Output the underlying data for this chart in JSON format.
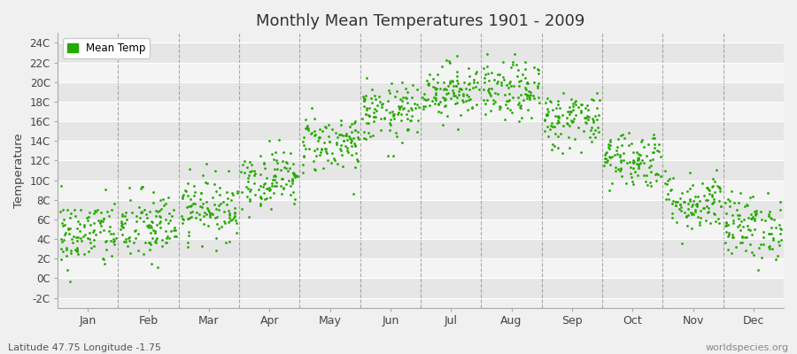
{
  "title": "Monthly Mean Temperatures 1901 - 2009",
  "ylabel": "Temperature",
  "subtitle": "Latitude 47.75 Longitude -1.75",
  "watermark": "worldspecies.org",
  "legend_label": "Mean Temp",
  "dot_color": "#22aa00",
  "bg_color": "#f0f0f0",
  "stripe_light": "#f4f4f4",
  "stripe_dark": "#e6e6e6",
  "grid_color": "#888888",
  "ytick_labels": [
    "-2C",
    "0C",
    "2C",
    "4C",
    "6C",
    "8C",
    "10C",
    "12C",
    "14C",
    "16C",
    "18C",
    "20C",
    "22C",
    "24C"
  ],
  "ytick_values": [
    -2,
    0,
    2,
    4,
    6,
    8,
    10,
    12,
    14,
    16,
    18,
    20,
    22,
    24
  ],
  "months": [
    "Jan",
    "Feb",
    "Mar",
    "Apr",
    "May",
    "Jun",
    "Jul",
    "Aug",
    "Sep",
    "Oct",
    "Nov",
    "Dec"
  ],
  "month_means": [
    4.5,
    5.2,
    7.2,
    10.2,
    13.8,
    16.8,
    19.2,
    19.0,
    16.2,
    12.2,
    7.8,
    5.3
  ],
  "month_stds": [
    1.8,
    1.9,
    1.6,
    1.5,
    1.5,
    1.5,
    1.4,
    1.5,
    1.5,
    1.5,
    1.5,
    1.7
  ],
  "n_years": 109,
  "ylim": [
    -3,
    25
  ],
  "figsize": [
    9.0,
    4.0
  ],
  "dpi": 100
}
